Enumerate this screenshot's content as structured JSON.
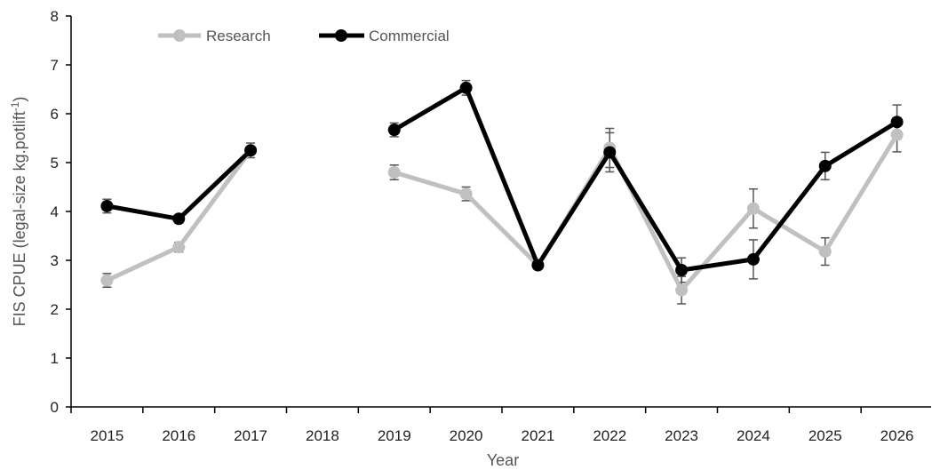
{
  "chart_data": {
    "type": "line",
    "xlabel": "Year",
    "ylabel_main": "FIS CPUE (legal-size kg.potlift",
    "ylabel_sup": "-1",
    "ylabel_close": ")",
    "categories": [
      "2015",
      "2016",
      "2017",
      "2018",
      "2019",
      "2020",
      "2021",
      "2022",
      "2023",
      "2024",
      "2025",
      "2026"
    ],
    "ylim": [
      0,
      8
    ],
    "yticks": [
      0,
      1,
      2,
      3,
      4,
      5,
      6,
      7,
      8
    ],
    "grid": false,
    "legend_position": "top-left",
    "series": [
      {
        "name": "Research",
        "color": "#c0c0c0",
        "values": [
          2.59,
          3.27,
          5.25,
          null,
          4.8,
          4.36,
          2.9,
          5.3,
          2.39,
          4.06,
          3.18,
          5.57
        ],
        "errors": [
          0.14,
          0.1,
          0.0,
          null,
          0.15,
          0.14,
          0.0,
          0.4,
          0.28,
          0.4,
          0.28,
          0.35
        ]
      },
      {
        "name": "Commercial",
        "color": "#000000",
        "values": [
          4.11,
          3.85,
          5.25,
          null,
          5.67,
          6.53,
          2.9,
          5.21,
          2.8,
          3.02,
          4.93,
          5.83
        ],
        "errors": [
          0.14,
          0.07,
          0.15,
          null,
          0.14,
          0.15,
          0.0,
          0.4,
          0.25,
          0.4,
          0.28,
          0.35
        ]
      }
    ]
  }
}
